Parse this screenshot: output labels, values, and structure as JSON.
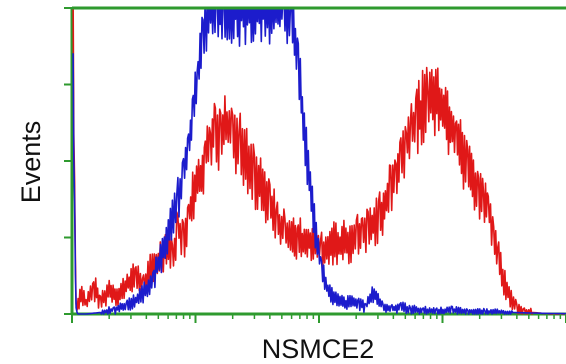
{
  "chart_data": {
    "type": "line",
    "title": "",
    "xlabel": "NSMCE2",
    "ylabel": "Events",
    "x_scale": "log",
    "xlim": [
      1,
      10000
    ],
    "ylim": [
      0,
      100
    ],
    "grid": false,
    "legend": "none",
    "frame_color": "#2e9a2e",
    "x_major_ticks": [
      1,
      10,
      100,
      1000,
      10000
    ],
    "y_major_ticks": [
      0,
      25,
      50,
      75,
      100
    ],
    "series": [
      {
        "color": "#e01818",
        "x": [
          1.02,
          1.05,
          1.08,
          1.12,
          1.2,
          1.3,
          1.5,
          1.7,
          2.0,
          2.4,
          2.8,
          3.3,
          3.8,
          4.3,
          5.0,
          5.7,
          6.5,
          7.2,
          8.0,
          8.8,
          9.5,
          10.2,
          11.0,
          12.0,
          13.2,
          14.5,
          16.0,
          18.0,
          20.0,
          23.0,
          26.0,
          30.0,
          35.0,
          40.0,
          46.0,
          53.0,
          60.0,
          68.0,
          76.0,
          85.0,
          95.0,
          105.0,
          118.0,
          132.0,
          148.0,
          165.0,
          185.0,
          205.0,
          225.0,
          250.0,
          280.0,
          310.0,
          345.0,
          380.0,
          420.0,
          460.0,
          510.0,
          560.0,
          620.0,
          690.0,
          760.0,
          850.0,
          950.0,
          1060.0,
          1180.0,
          1300.0,
          1450.0,
          1600.0,
          1780.0,
          1960.0,
          2150.0,
          2350.0,
          2600.0,
          2850.0,
          3200.0,
          3600.0,
          4000.0,
          4600.0,
          5400.0,
          6500.0,
          8000.0,
          10000.0
        ],
        "y": [
          95,
          40,
          2,
          4,
          7,
          3,
          9,
          4,
          8,
          6,
          10,
          12,
          9,
          14,
          17,
          22,
          18,
          28,
          24,
          33,
          38,
          45,
          43,
          52,
          55,
          60,
          57,
          62,
          58,
          55,
          50,
          45,
          40,
          35,
          30,
          26,
          24,
          25,
          23,
          24,
          22,
          21,
          22,
          23,
          22,
          24,
          23,
          25,
          26,
          28,
          30,
          32,
          36,
          40,
          45,
          50,
          55,
          60,
          64,
          67,
          69,
          71,
          70,
          66,
          62,
          57,
          52,
          47,
          44,
          40,
          36,
          34,
          26,
          18,
          10,
          5,
          2,
          1,
          0.5,
          0.2,
          0,
          0
        ]
      },
      {
        "color": "#1c1ccc",
        "x": [
          1.02,
          1.05,
          1.08,
          1.12,
          1.3,
          1.7,
          2.2,
          2.8,
          3.4,
          4.0,
          4.6,
          5.2,
          5.8,
          6.5,
          7.2,
          8.0,
          8.8,
          9.6,
          10.5,
          11.5,
          12.5,
          13.5,
          15.0,
          17.0,
          20.0,
          24.0,
          30.0,
          36.0,
          44.0,
          52.0,
          60.0,
          68.0,
          76.0,
          85.0,
          95.0,
          105.0,
          118.0,
          132.0,
          148.0,
          165.0,
          185.0,
          210.0,
          240.0,
          280.0,
          330.0,
          390.0,
          460.0,
          550.0,
          700.0,
          900.0,
          1200.0,
          1600.0,
          2200.0,
          3000.0,
          4500.0,
          7000.0,
          10000.0
        ],
        "y": [
          80,
          30,
          1,
          0,
          0,
          0.5,
          1.5,
          3,
          5,
          8,
          12,
          18,
          24,
          31,
          38,
          46,
          55,
          66,
          78,
          92,
          100,
          100,
          100,
          100,
          100,
          100,
          100,
          100,
          100,
          100,
          95,
          80,
          60,
          40,
          24,
          14,
          8,
          5,
          4,
          3.5,
          4,
          3,
          2.5,
          7,
          2,
          1.8,
          2.2,
          1.5,
          1.2,
          1.0,
          1.2,
          0.8,
          0.7,
          0.6,
          0.4,
          0.2,
          0.1
        ]
      }
    ]
  }
}
